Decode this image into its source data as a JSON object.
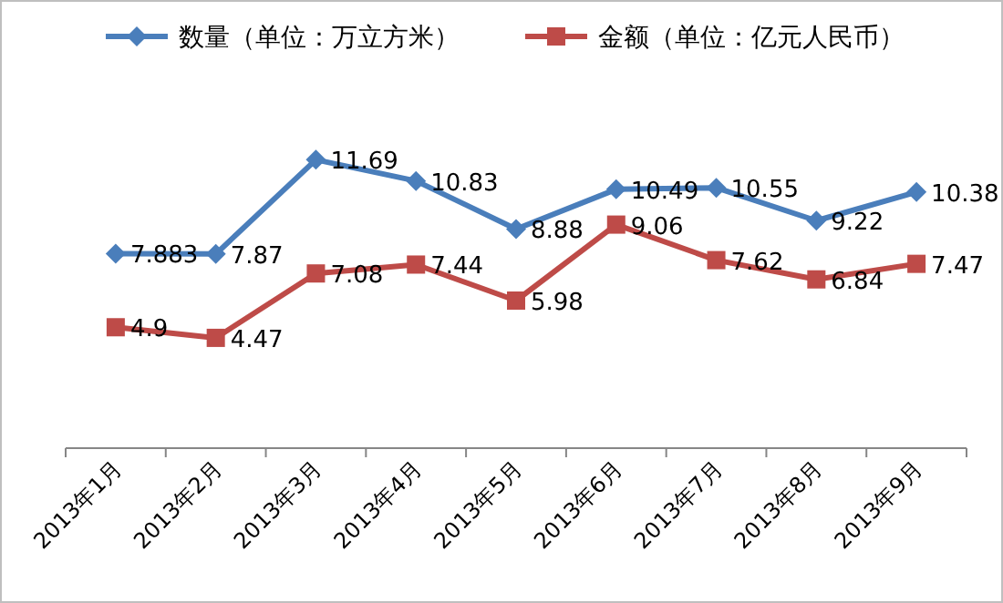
{
  "chart_data": {
    "type": "line",
    "categories": [
      "2013年1月",
      "2013年2月",
      "2013年3月",
      "2013年4月",
      "2013年5月",
      "2013年6月",
      "2013年7月",
      "2013年8月",
      "2013年9月"
    ],
    "series": [
      {
        "name": "数量（单位：万立方米）",
        "color": "#4a7ebb",
        "marker": "diamond",
        "values": [
          7.883,
          7.87,
          11.69,
          10.83,
          8.88,
          10.49,
          10.55,
          9.22,
          10.38
        ]
      },
      {
        "name": "金额（单位：亿元人民币）",
        "color": "#be4b48",
        "marker": "square",
        "values": [
          4.9,
          4.47,
          7.08,
          7.44,
          5.98,
          9.06,
          7.62,
          6.84,
          7.47
        ]
      }
    ],
    "data_labels": true,
    "legend": "top",
    "grid": false
  }
}
